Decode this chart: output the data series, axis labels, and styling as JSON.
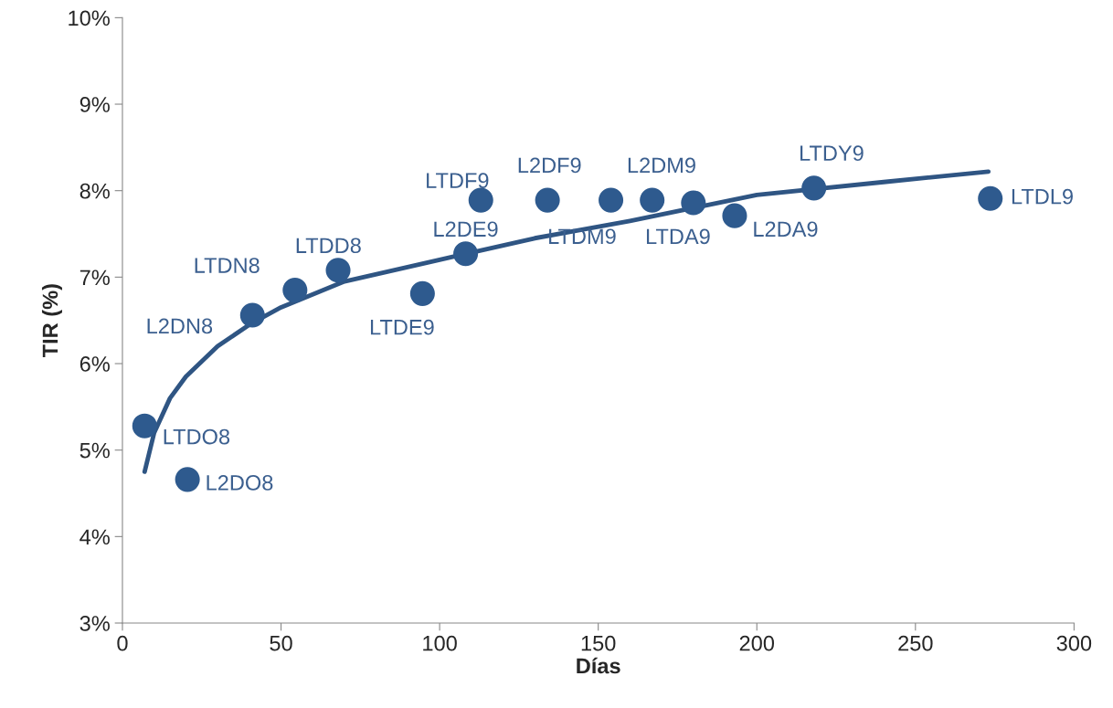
{
  "chart_data": {
    "type": "scatter",
    "xlabel": "Días",
    "ylabel": "TIR (%)",
    "xlim": [
      0,
      300
    ],
    "xticks": [
      0,
      50,
      100,
      150,
      200,
      250,
      300
    ],
    "ylim": [
      3,
      10
    ],
    "yticks": [
      {
        "value": 3,
        "label": "3%"
      },
      {
        "value": 4,
        "label": "4%"
      },
      {
        "value": 5,
        "label": "5%"
      },
      {
        "value": 6,
        "label": "6%"
      },
      {
        "value": 7,
        "label": "7%"
      },
      {
        "value": 8,
        "label": "8%"
      },
      {
        "value": 9,
        "label": "9%"
      },
      {
        "value": 10,
        "label": "10%"
      }
    ],
    "grid": false,
    "legend": false,
    "series": [
      {
        "marker": "circle",
        "color": "#2e5a8e",
        "x": [
          7,
          20.5,
          41,
          54.4,
          68,
          94.6,
          108.2,
          113,
          134,
          154,
          167,
          180,
          193,
          218,
          273.6
        ],
        "values": [
          5.28,
          4.66,
          6.56,
          6.85,
          7.08,
          6.81,
          7.27,
          7.89,
          7.89,
          7.89,
          7.89,
          7.86,
          7.71,
          8.03,
          7.91
        ]
      },
      {
        "type": "line",
        "color": "#2f5583",
        "line_style": "solid",
        "x": [
          7,
          10,
          15,
          20,
          30,
          40,
          50,
          70,
          100,
          130,
          160,
          200,
          240,
          273
        ],
        "values": [
          4.75,
          5.2,
          5.6,
          5.85,
          6.2,
          6.45,
          6.65,
          6.95,
          7.2,
          7.45,
          7.65,
          7.95,
          8.1,
          8.22
        ]
      }
    ],
    "annotations": [
      {
        "text": "LTDO8",
        "x": 7,
        "y": 5.28
      },
      {
        "text": "L2DO8",
        "x": 20.5,
        "y": 4.66
      },
      {
        "text": "L2DN8",
        "x": 41,
        "y": 6.56
      },
      {
        "text": "LTDN8",
        "x": 54.4,
        "y": 6.85
      },
      {
        "text": "LTDD8",
        "x": 68,
        "y": 7.08
      },
      {
        "text": "LTDE9",
        "x": 94.6,
        "y": 6.81
      },
      {
        "text": "L2DE9",
        "x": 108.2,
        "y": 7.27
      },
      {
        "text": "LTDF9",
        "x": 113,
        "y": 7.89
      },
      {
        "text": "L2DF9",
        "x": 134,
        "y": 7.89
      },
      {
        "text": "LTDM9",
        "x": 154,
        "y": 7.89
      },
      {
        "text": "L2DM9",
        "x": 167,
        "y": 7.89
      },
      {
        "text": "LTDA9",
        "x": 180,
        "y": 7.86
      },
      {
        "text": "L2DA9",
        "x": 193,
        "y": 7.71
      },
      {
        "text": "LTDY9",
        "x": 218,
        "y": 8.03
      },
      {
        "text": "LTDL9",
        "x": 273.6,
        "y": 7.91
      }
    ]
  }
}
